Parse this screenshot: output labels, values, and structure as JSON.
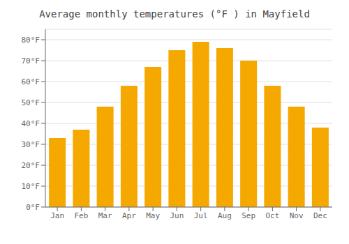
{
  "chart_data": {
    "type": "bar",
    "title": "Average monthly temperatures (°F ) in Mayfield",
    "categories": [
      "Jan",
      "Feb",
      "Mar",
      "Apr",
      "May",
      "Jun",
      "Jul",
      "Aug",
      "Sep",
      "Oct",
      "Nov",
      "Dec"
    ],
    "values": [
      33,
      37,
      48,
      58,
      67,
      75,
      79,
      76,
      70,
      58,
      48,
      38
    ],
    "color": "#F5A800",
    "ylim": [
      0,
      85
    ],
    "yticks": [
      {
        "value": 0,
        "label": "0°F"
      },
      {
        "value": 10,
        "label": "10°F"
      },
      {
        "value": 20,
        "label": "20°F"
      },
      {
        "value": 30,
        "label": "30°F"
      },
      {
        "value": 40,
        "label": "40°F"
      },
      {
        "value": 50,
        "label": "50°F"
      },
      {
        "value": 60,
        "label": "60°F"
      },
      {
        "value": 70,
        "label": "70°F"
      },
      {
        "value": 80,
        "label": "80°F"
      }
    ],
    "grid": true
  }
}
